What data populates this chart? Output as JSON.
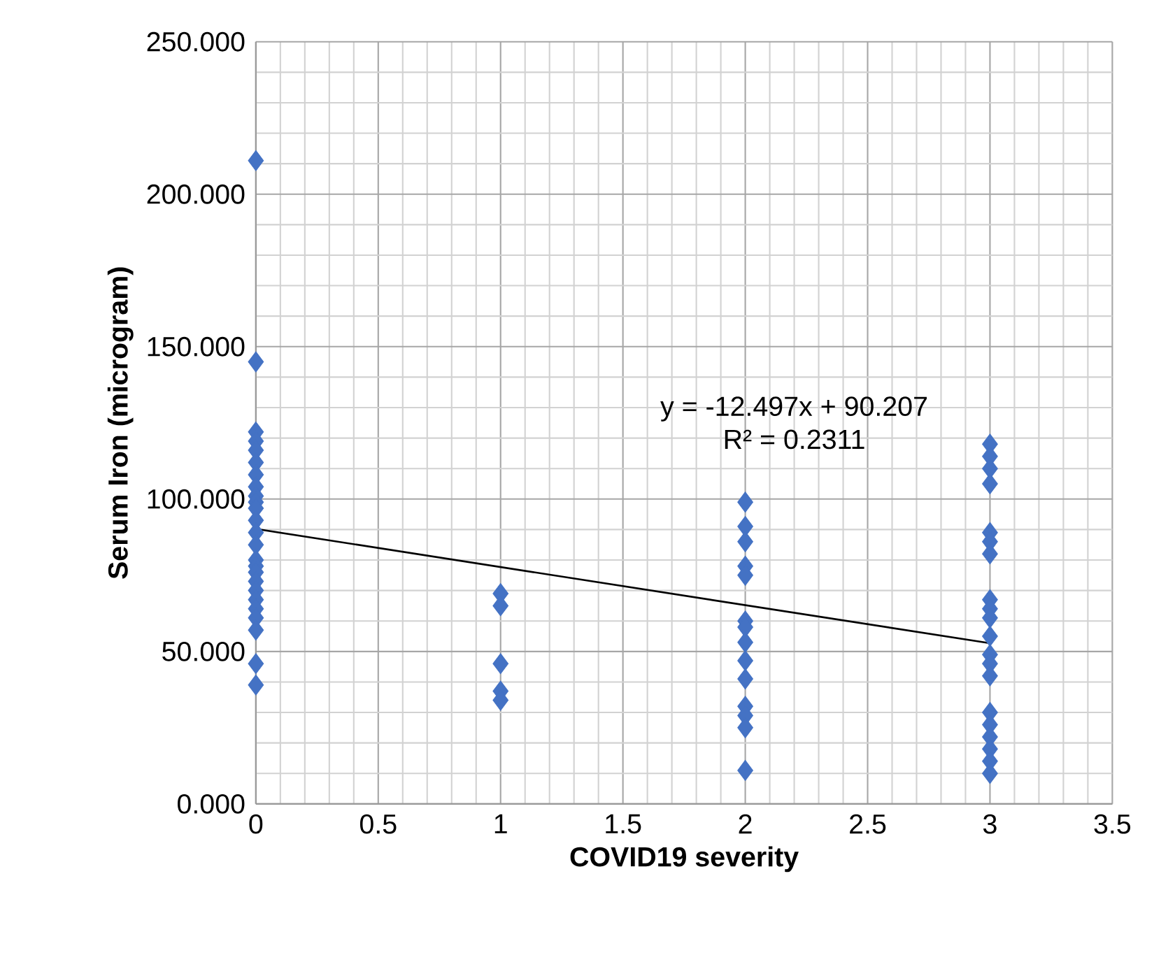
{
  "chart_data": {
    "type": "scatter",
    "xlabel": "COVID19 severity",
    "ylabel": "Serum Iron (microgram)",
    "marker": "diamond",
    "grid": true,
    "xlim": [
      0,
      3.5
    ],
    "ylim": [
      0,
      250
    ],
    "xticks": [
      0,
      0.5,
      1,
      1.5,
      2,
      2.5,
      3,
      3.5
    ],
    "yticks": [
      {
        "value": 0,
        "label": "0.000"
      },
      {
        "value": 50,
        "label": "50.000"
      },
      {
        "value": 100,
        "label": "100.000"
      },
      {
        "value": 150,
        "label": "150.000"
      },
      {
        "value": 200,
        "label": "200.000"
      },
      {
        "value": 250,
        "label": "250.000"
      }
    ],
    "annotations": [
      "y = -12.497x + 90.207",
      "R² = 0.2311"
    ],
    "series": [
      {
        "color": "#4472c4",
        "x": [
          0,
          0,
          0,
          0,
          0,
          0,
          0,
          0,
          0,
          0,
          0,
          0,
          0,
          0,
          0,
          0,
          0,
          0,
          0,
          0,
          0,
          0,
          0,
          0,
          0,
          1,
          1,
          1,
          1,
          1,
          2,
          2,
          2,
          2,
          2,
          2,
          2,
          2,
          2,
          2,
          2,
          2,
          2,
          2,
          3,
          3,
          3,
          3,
          3,
          3,
          3,
          3,
          3,
          3,
          3,
          3,
          3,
          3,
          3,
          3,
          3,
          3,
          3,
          3
        ],
        "values": [
          211,
          145,
          122,
          119,
          116,
          112,
          108,
          104,
          101,
          99,
          97,
          93,
          89,
          85,
          80,
          78,
          76,
          73,
          70,
          67,
          64,
          61,
          57,
          46,
          39,
          69,
          65,
          46,
          37,
          34,
          99,
          91,
          86,
          78,
          75,
          60,
          58,
          53,
          47,
          41,
          32,
          29,
          25,
          11,
          118,
          114,
          110,
          105,
          89,
          86,
          82,
          67,
          64,
          61,
          55,
          49,
          46,
          42,
          30,
          26,
          22,
          18,
          14,
          10
        ]
      },
      {
        "type": "line",
        "color": "#000000",
        "marker": "none",
        "x": [
          0,
          3
        ],
        "values": [
          90.2,
          52.7
        ]
      }
    ]
  }
}
